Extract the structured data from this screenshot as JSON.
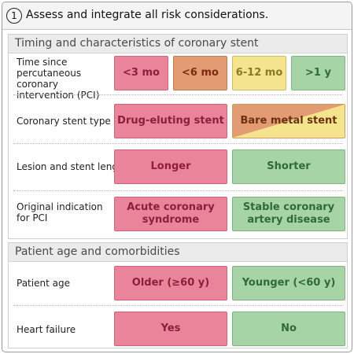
{
  "step": {
    "number": "1",
    "title": "Assess and integrate all risk considerations."
  },
  "colors": {
    "high_risk": "#e9849a",
    "elevated_risk": "#e39b73",
    "moderate_risk": "#f3e48d",
    "low_risk": "#a7d4a6"
  },
  "sections": [
    {
      "title": "Timing and characteristics of coronary stent",
      "rows": [
        {
          "label": "Time since percutaneous coronary intervention (PCI)",
          "cells": [
            "<3 mo",
            "<6 mo",
            "6-12 mo",
            ">1 y"
          ]
        },
        {
          "label": "Coronary stent type",
          "cells": [
            "Drug-eluting stent",
            "Bare metal stent"
          ]
        },
        {
          "label": "Lesion and stent length",
          "cells": [
            "Longer",
            "Shorter"
          ]
        },
        {
          "label": "Original indication for PCI",
          "cells": [
            "Acute coronary syndrome",
            "Stable coronary artery disease"
          ]
        }
      ]
    },
    {
      "title": "Patient age and comorbidities",
      "rows": [
        {
          "label": "Patient age",
          "cells": [
            "Older (≥60 y)",
            "Younger (<60 y)"
          ]
        },
        {
          "label": "Heart failure",
          "cells": [
            "Yes",
            "No"
          ]
        }
      ]
    }
  ]
}
